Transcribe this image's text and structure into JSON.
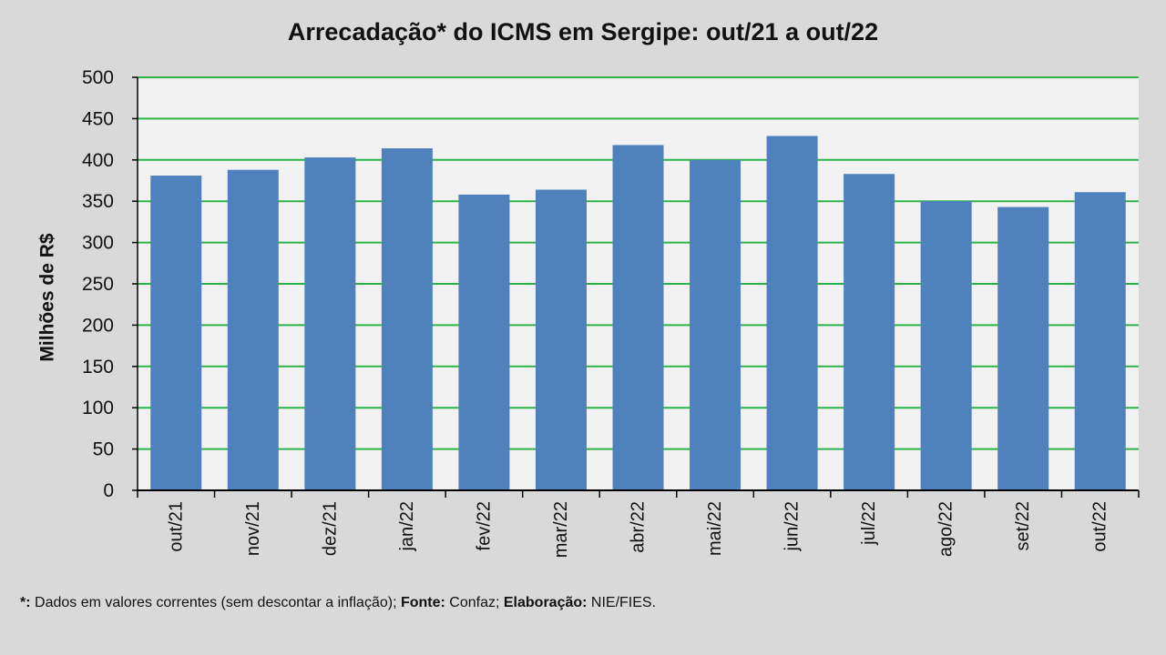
{
  "chart_data": {
    "type": "bar",
    "title": "Arrecadação* do ICMS em Sergipe: out/21 a out/22",
    "xlabel": "",
    "ylabel": "Milhões de R$",
    "categories": [
      "out/21",
      "nov/21",
      "dez/21",
      "jan/22",
      "fev/22",
      "mar/22",
      "abr/22",
      "mai/22",
      "jun/22",
      "jul/22",
      "ago/22",
      "set/22",
      "out/22"
    ],
    "values": [
      381,
      388,
      403,
      414,
      358,
      364,
      418,
      400,
      429,
      383,
      350,
      343,
      361
    ],
    "ylim": [
      0,
      500
    ],
    "yticks": [
      0,
      50,
      100,
      150,
      200,
      250,
      300,
      350,
      400,
      450,
      500
    ],
    "ytick_labels": [
      "0",
      "50",
      "100",
      "150",
      "200",
      "250",
      "300",
      "350",
      "400",
      "450",
      "500"
    ],
    "grid": true,
    "legend": "none",
    "colors": {
      "bar": "#4f81bd",
      "grid": "#2db34a",
      "plot_background": "#f2f2f2",
      "page_background": "#d9d9d9"
    }
  },
  "footnote": {
    "marker": "*:",
    "note": " Dados em valores correntes (sem descontar a inflação); ",
    "source_label": "Fonte:",
    "source": " Confaz; ",
    "credit_label": "Elaboração:",
    "credit": " NIE/FIES."
  }
}
